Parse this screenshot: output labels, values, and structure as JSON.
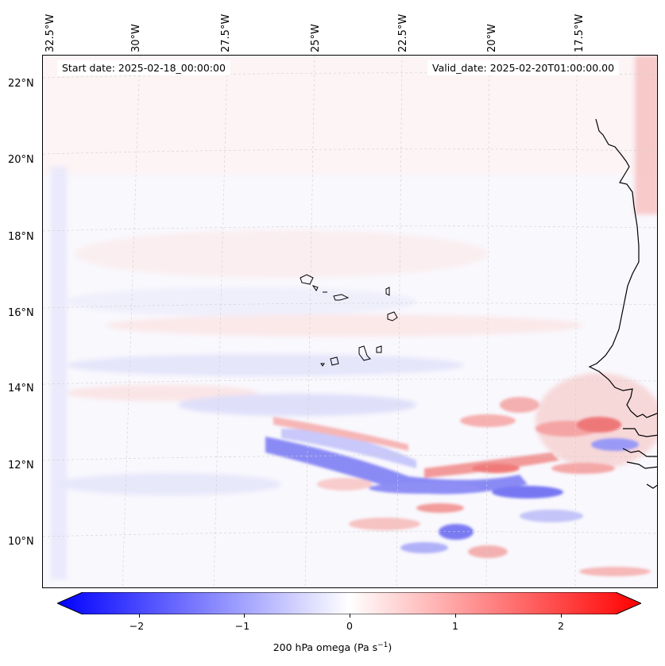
{
  "map": {
    "start_date": "Start date: 2025-02-18_00:00:00",
    "valid_date": "Valid_date: 2025-02-20T01:00:00.00",
    "lon_labels": [
      "32.5°W",
      "30°W",
      "27.5°W",
      "25°W",
      "22.5°W",
      "20°W",
      "17.5°W"
    ],
    "lat_labels": [
      "22°N",
      "20°N",
      "18°N",
      "16°N",
      "14°N",
      "12°N",
      "10°N"
    ],
    "colors": {
      "negative": "#0000ff",
      "neutral": "#ffffff",
      "positive": "#ff0000",
      "coast": "#000000"
    }
  },
  "colorbar": {
    "label_prefix": "200 hPa omega (Pa s",
    "label_exp": "−1",
    "label_suffix": ")",
    "ticks": [
      "−2",
      "−1",
      "0",
      "1",
      "2"
    ],
    "tick_values": [
      -2,
      -1,
      0,
      1,
      2
    ],
    "range": [
      -2.75,
      2.75
    ]
  }
}
